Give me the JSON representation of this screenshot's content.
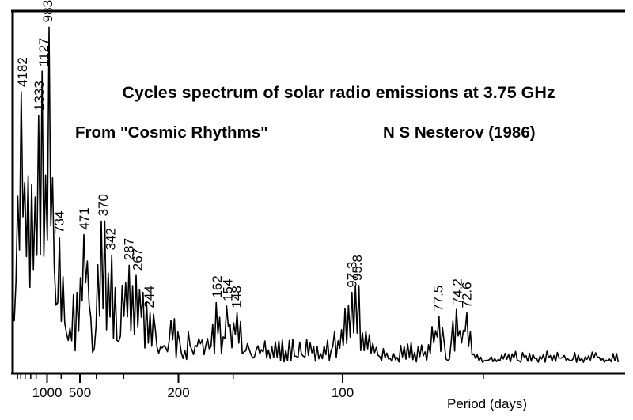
{
  "chart_data": {
    "type": "line",
    "title": "Cycles spectrum of solar radio emissions at 3.75 GHz",
    "subtitle_left": "From \"Cosmic Rhythms\"",
    "subtitle_right": "N S Nesterov (1986)",
    "xlabel": "Period (days)",
    "ylabel": "",
    "x_axis": "frequency (1/period), period labels shown",
    "x_ticks": [
      {
        "label": "1000",
        "period": 1000
      },
      {
        "label": "500",
        "period": 500
      },
      {
        "label": "200",
        "period": 200
      },
      {
        "label": "100",
        "period": 100
      }
    ],
    "peaks": [
      {
        "label": "4182",
        "period": 4182,
        "height": 0.8
      },
      {
        "label": "1333",
        "period": 1333,
        "height": 0.73
      },
      {
        "label": "1127",
        "period": 1127,
        "height": 0.86
      },
      {
        "label": "983",
        "period": 983,
        "height": 0.99
      },
      {
        "label": "734",
        "period": 734,
        "height": 0.37
      },
      {
        "label": "471",
        "period": 471,
        "height": 0.38
      },
      {
        "label": "370",
        "period": 370,
        "height": 0.42
      },
      {
        "label": "342",
        "period": 342,
        "height": 0.32
      },
      {
        "label": "287",
        "period": 287,
        "height": 0.29
      },
      {
        "label": "267",
        "period": 267,
        "height": 0.26
      },
      {
        "label": "244",
        "period": 244,
        "height": 0.15
      },
      {
        "label": "162",
        "period": 162,
        "height": 0.18
      },
      {
        "label": "154",
        "period": 154,
        "height": 0.17
      },
      {
        "label": "148",
        "period": 148,
        "height": 0.15
      },
      {
        "label": "97.3",
        "period": 97.3,
        "height": 0.21
      },
      {
        "label": "95.8",
        "period": 95.8,
        "height": 0.23
      },
      {
        "label": "77.5",
        "period": 77.5,
        "height": 0.14
      },
      {
        "label": "74.2",
        "period": 74.2,
        "height": 0.16
      },
      {
        "label": "72.6",
        "period": 72.6,
        "height": 0.15
      }
    ],
    "grid": false,
    "legend": "none"
  }
}
